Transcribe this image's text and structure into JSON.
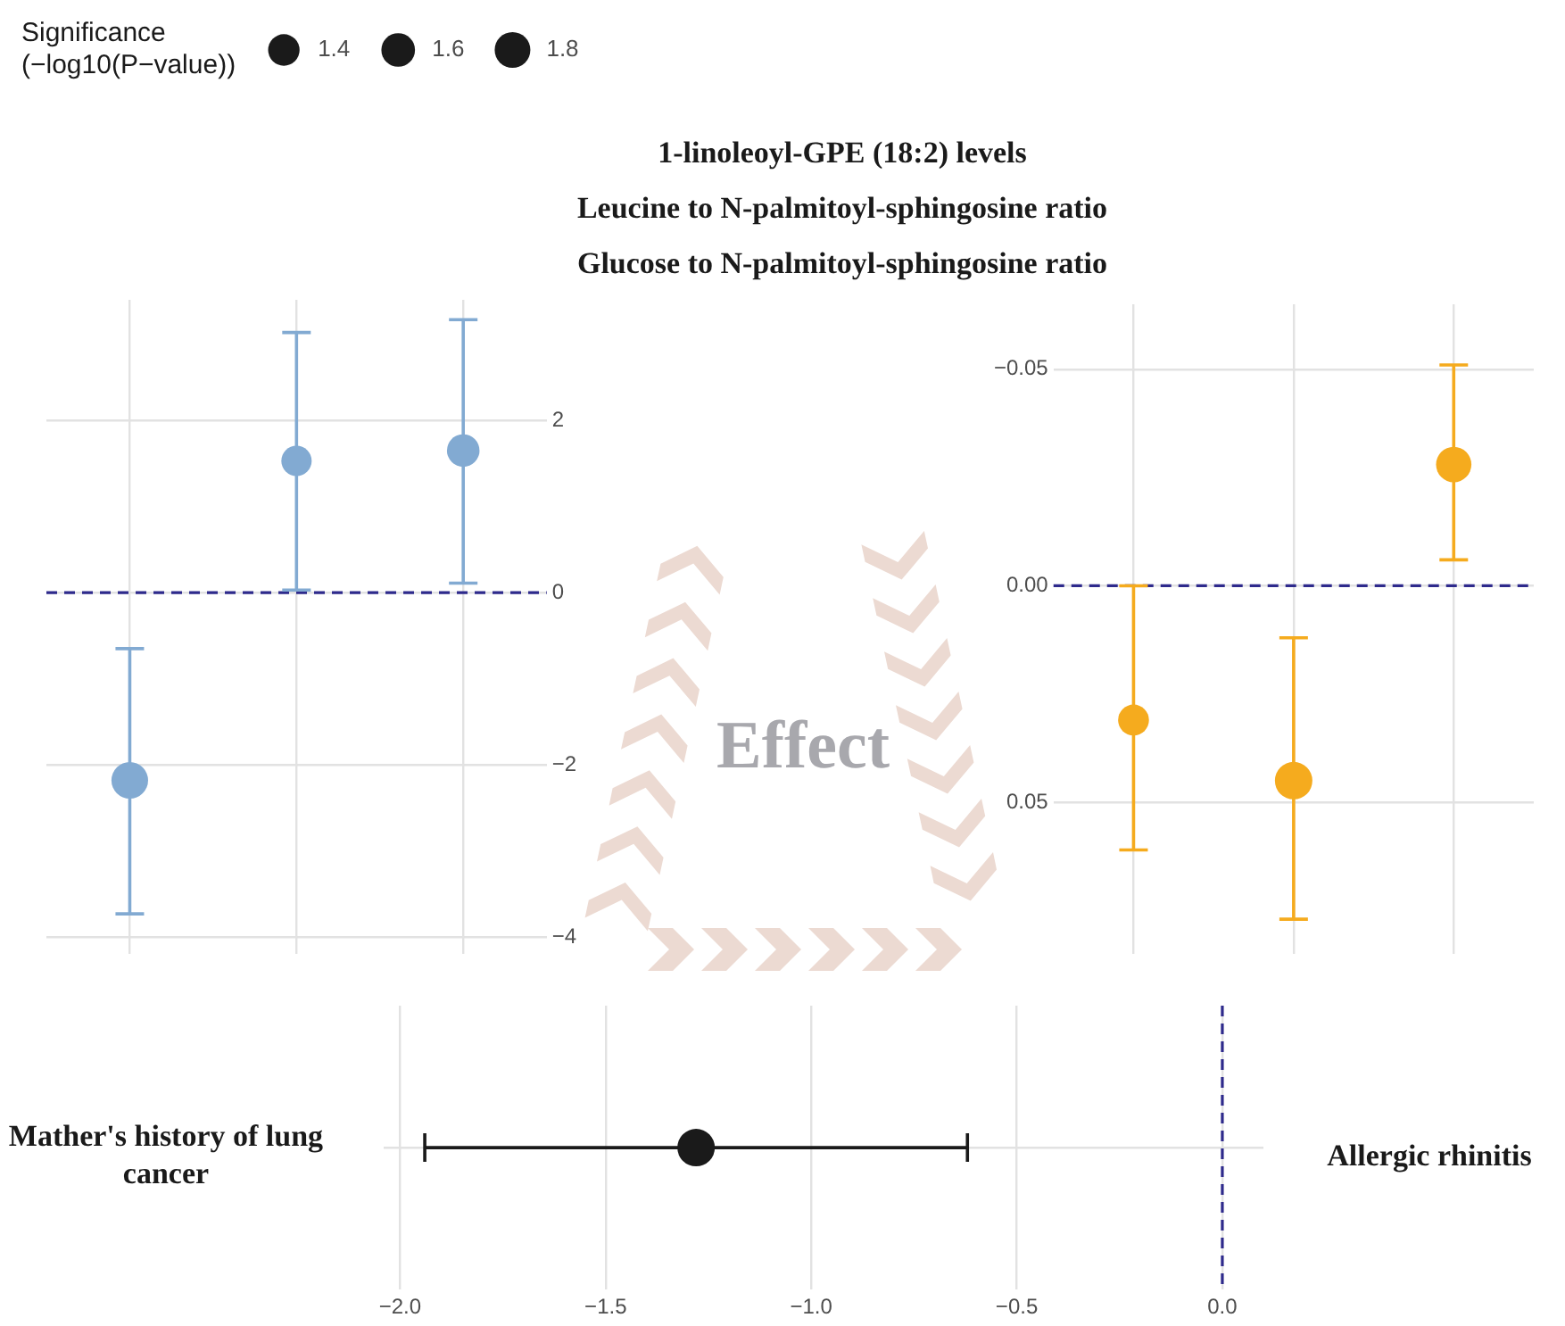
{
  "chart_data": [
    {
      "type": "bubble",
      "categories": [
        null,
        null,
        null
      ],
      "values": [
        -2.18,
        1.53,
        1.65
      ],
      "errors": [
        [
          -3.73,
          -0.65
        ],
        [
          0.03,
          3.02
        ],
        [
          0.11,
          3.17
        ]
      ],
      "sizes": [
        1.9,
        1.3,
        1.5
      ],
      "size_legend": [
        1.4,
        1.6,
        1.8
      ],
      "legend_title": "Significance\n(−log10(P−value))",
      "color": "#82aad2",
      "ylim": [
        -4.2,
        3.4
      ],
      "yticks": [
        {
          "value": -4,
          "label": "−4"
        },
        {
          "value": -2,
          "label": "−2"
        },
        0,
        2
      ],
      "grid": true,
      "ref_lines": [
        {
          "axis": "y",
          "value": 0,
          "color": "#2e2a8c",
          "line_style": "dashed"
        }
      ],
      "annotations": [
        "1-linoleoyl-GPE (18:2) levels",
        "Leucine to N-palmitoyl-sphingosine ratio",
        "Glucose to N-palmitoyl-sphingosine ratio"
      ]
    },
    {
      "type": "bubble",
      "categories": [
        null,
        null,
        null
      ],
      "values": [
        0.031,
        0.045,
        -0.028
      ],
      "errors": [
        [
          0.0,
          0.061
        ],
        [
          0.012,
          0.077
        ],
        [
          -0.051,
          -0.006
        ]
      ],
      "sizes": [
        0.68,
        1,
        0.89
      ],
      "color": "#f5ab1e",
      "ylim": [
        0.085,
        -0.065
      ],
      "yticks": [
        {
          "value": -0.05,
          "label": "−0.05"
        },
        {
          "value": 0,
          "label": "0.00"
        },
        {
          "value": 0.05,
          "label": "0.05"
        }
      ],
      "grid": true,
      "ref_lines": [
        {
          "axis": "y",
          "value": 0,
          "color": "#2e2a8c",
          "line_style": "dashed"
        }
      ]
    },
    {
      "type": "bubble",
      "orientation": "horizontal",
      "categories": [
        null
      ],
      "values": [
        -1.28
      ],
      "errors": [
        [
          -1.94,
          -0.62
        ]
      ],
      "sizes": [
        1
      ],
      "color": "#1a1a1a",
      "xlim": [
        -2.04,
        0.1
      ],
      "xticks": [
        {
          "value": -2,
          "label": "−2.0"
        },
        {
          "value": -1.5,
          "label": "−1.5"
        },
        {
          "value": -1,
          "label": "−1.0"
        },
        {
          "value": -0.5,
          "label": "−0.5"
        },
        {
          "value": 0,
          "label": "0.0"
        }
      ],
      "grid": true,
      "ref_lines": [
        {
          "axis": "x",
          "value": 0,
          "color": "#2e2a8c",
          "line_style": "dashed"
        }
      ],
      "annotations": [
        "Mather's history of lung cancer",
        "Allergic rhinitis",
        "Effect"
      ]
    }
  ]
}
